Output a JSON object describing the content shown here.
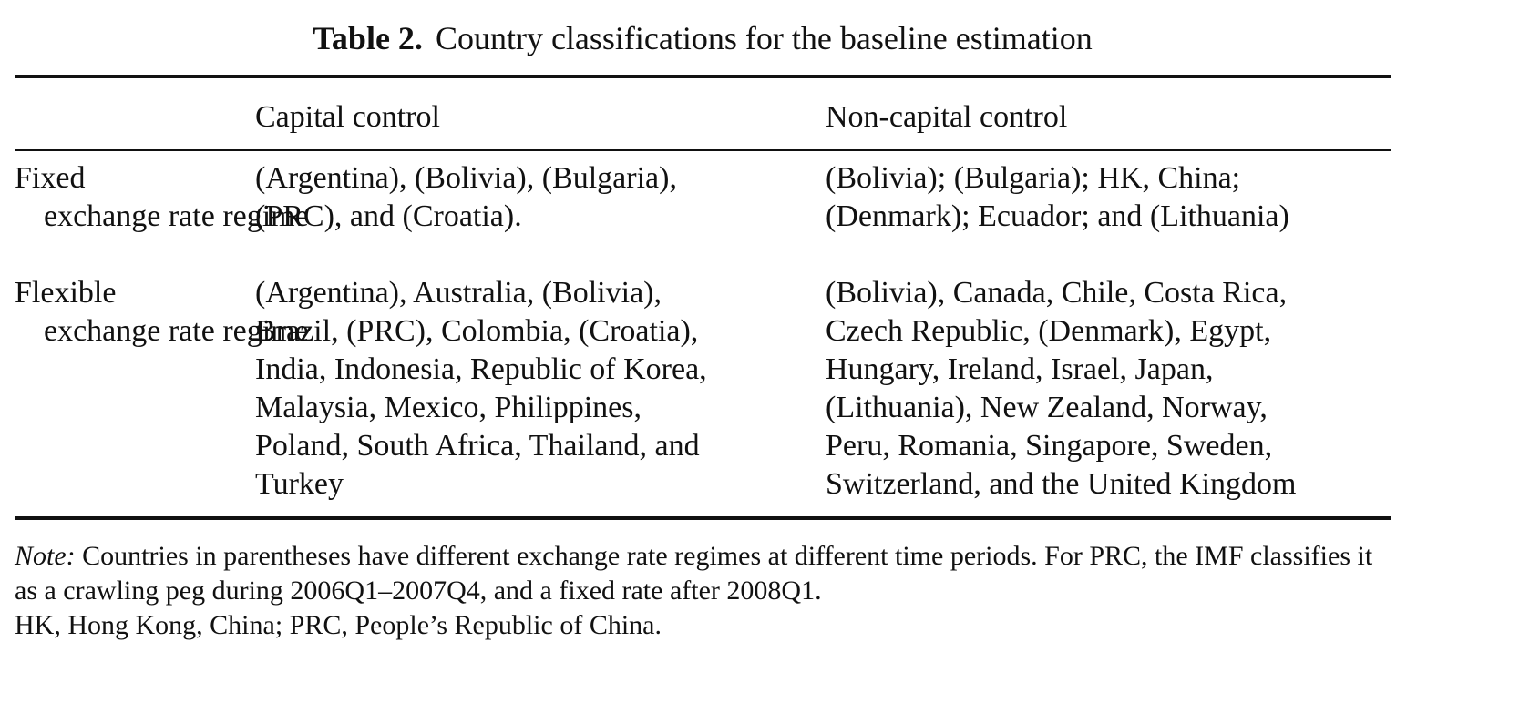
{
  "table": {
    "caption_label": "Table 2.",
    "caption_text": "Country classifications for the baseline estimation",
    "columns": [
      "",
      "Capital control",
      "Non-capital control"
    ],
    "rows": [
      {
        "label_first": "Fixed",
        "label_rest": "exchange\nrate regime",
        "capital_control": "(Argentina), (Bolivia), (Bulgaria),\n(PRC), and (Croatia).",
        "non_capital_control": "(Bolivia); (Bulgaria); HK, China;\n(Denmark); Ecuador; and (Lithuania)"
      },
      {
        "label_first": "Flexible",
        "label_rest": "exchange\nrate regime",
        "capital_control": "(Argentina), Australia, (Bolivia),\nBrazil, (PRC), Colombia, (Croatia),\nIndia, Indonesia, Republic of Korea,\nMalaysia, Mexico, Philippines,\nPoland, South Africa, Thailand, and\nTurkey",
        "non_capital_control": "(Bolivia), Canada, Chile, Costa Rica,\nCzech Republic, (Denmark), Egypt,\nHungary, Ireland, Israel, Japan,\n(Lithuania), New Zealand, Norway,\nPeru, Romania, Singapore, Sweden,\nSwitzerland, and the United Kingdom"
      }
    ],
    "note_label": "Note:",
    "note_text": " Countries in parentheses have different exchange rate regimes at different time periods. For PRC, the IMF classifies it as a crawling peg during 2006Q1–2007Q4, and a fixed rate after 2008Q1.",
    "abbreviations": "HK, Hong Kong, China; PRC, People’s Republic of China."
  }
}
